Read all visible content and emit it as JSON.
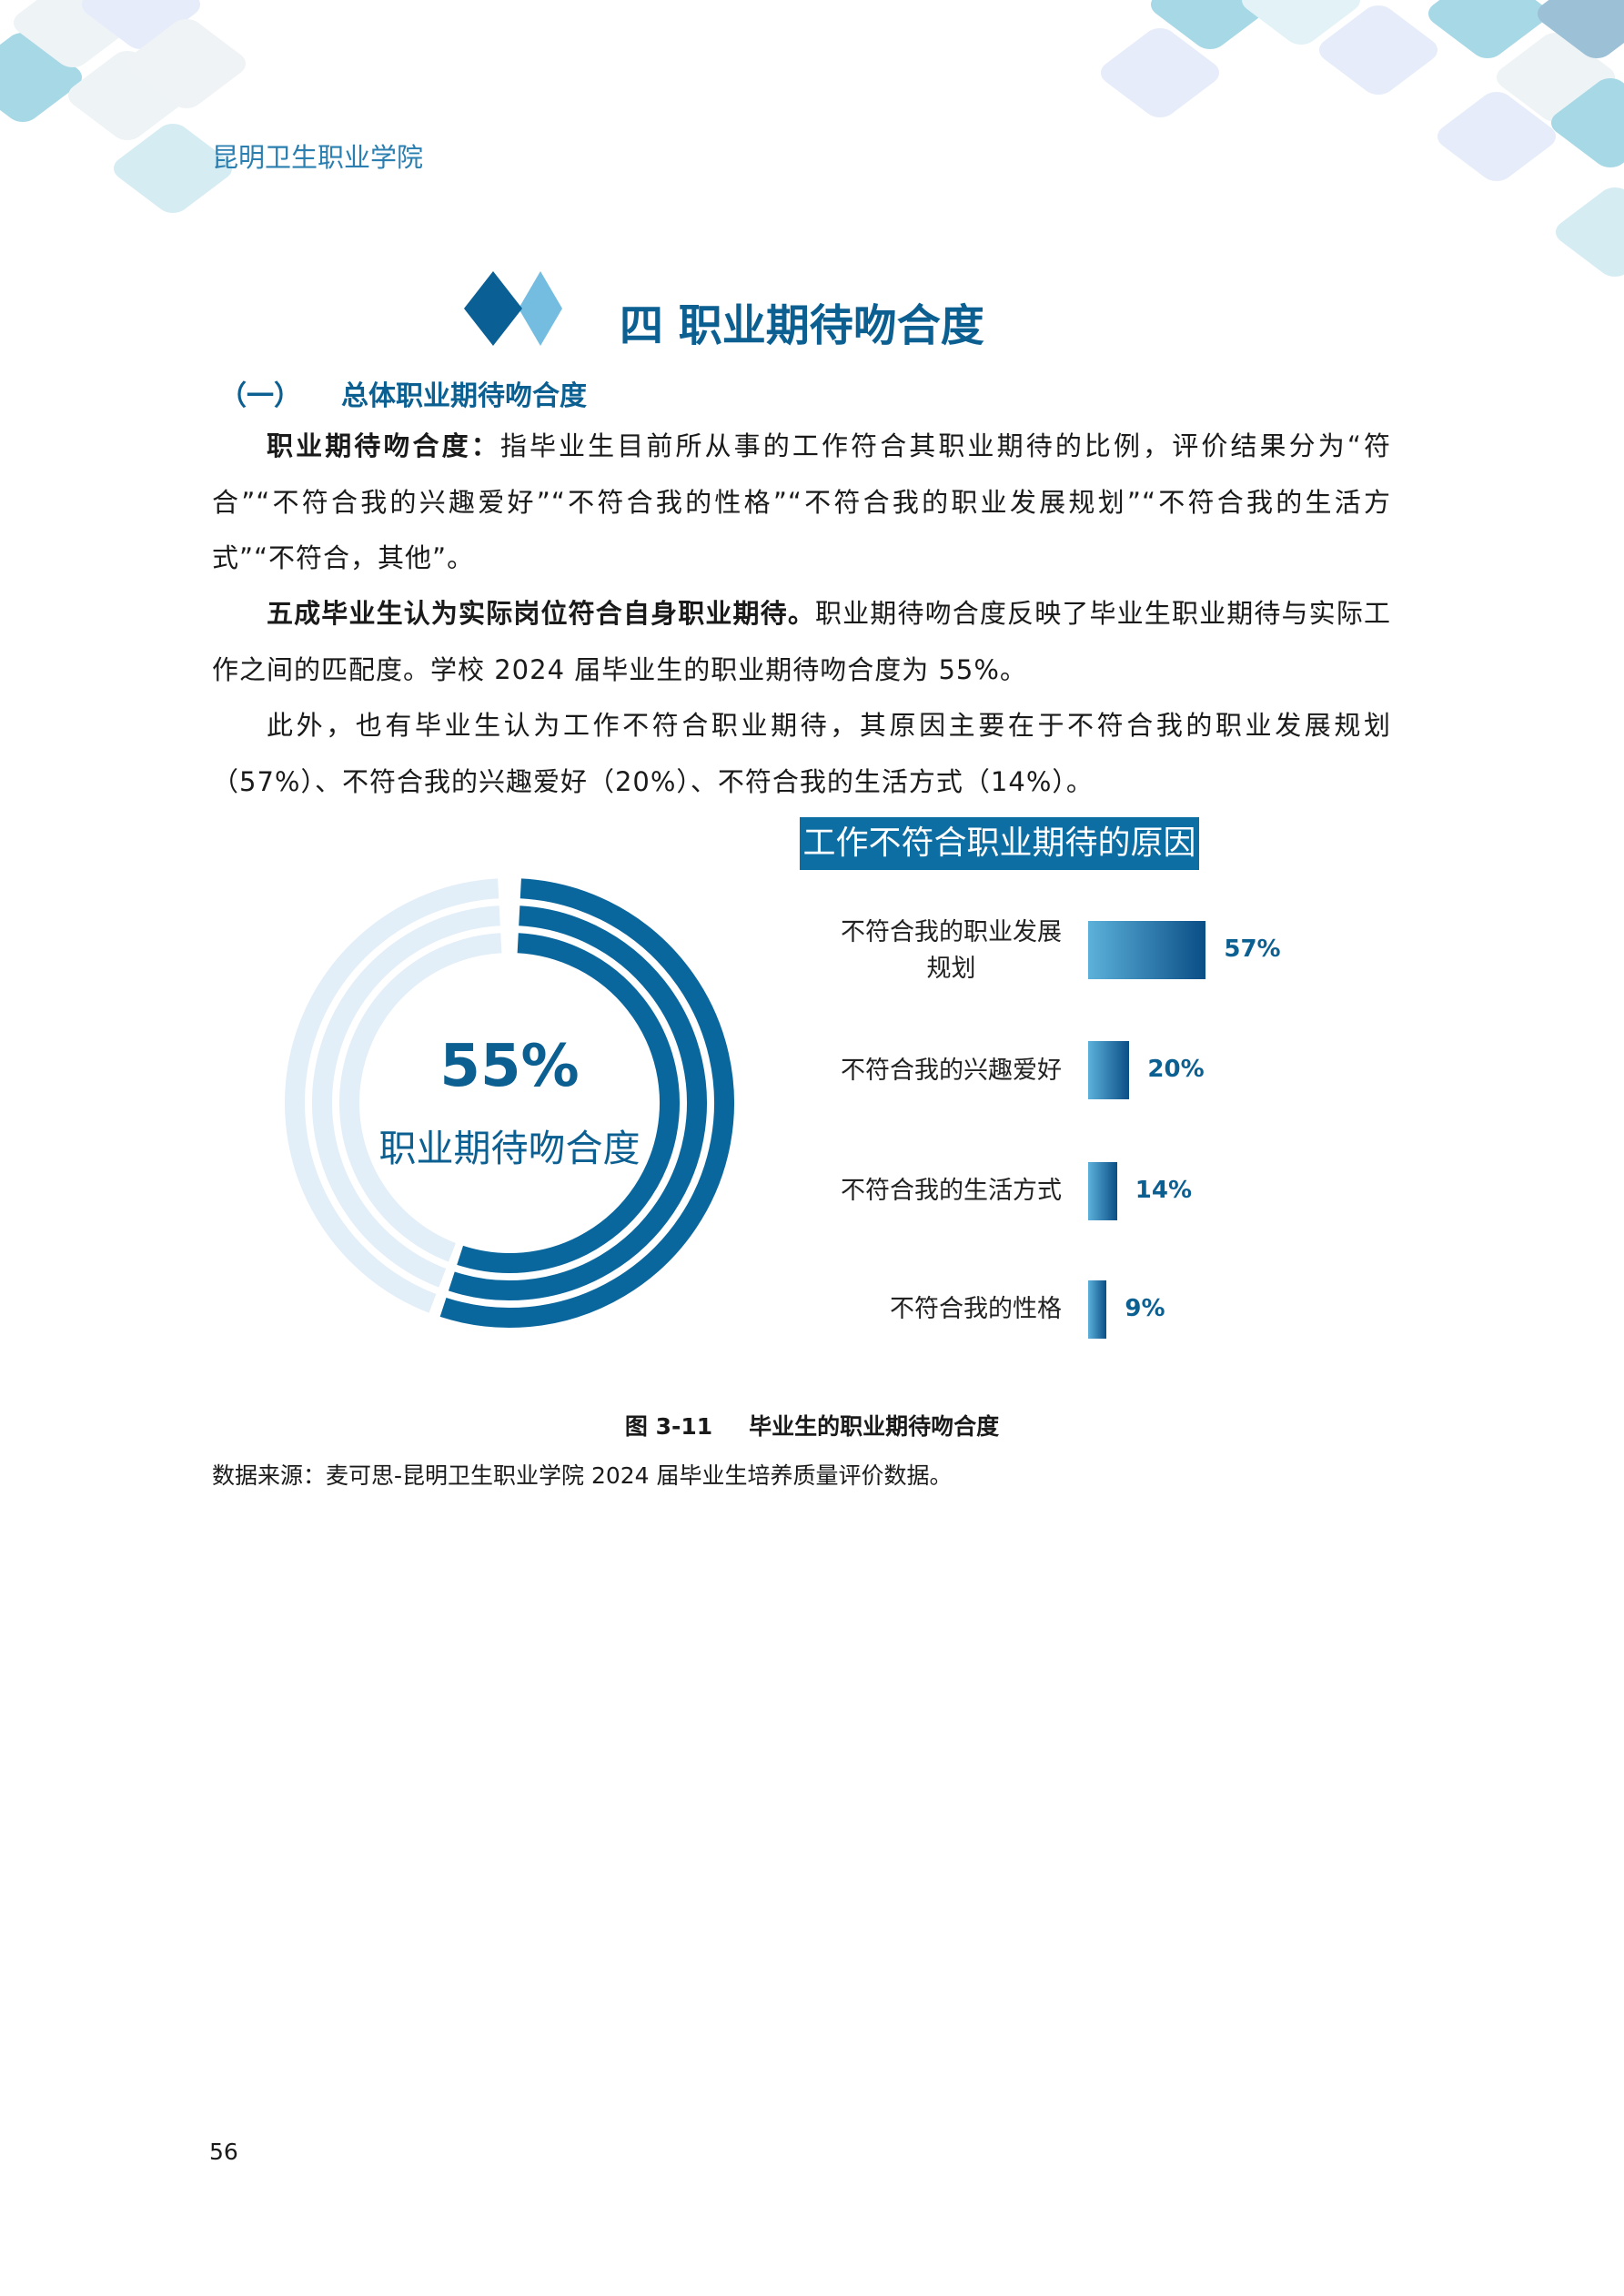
{
  "header": {
    "institution": "昆明卫生职业学院"
  },
  "section": {
    "title": "四 职业期待吻合度"
  },
  "subsection": {
    "number": "（一）",
    "title": "总体职业期待吻合度"
  },
  "paragraphs": [
    {
      "bold": "职业期待吻合度：",
      "text": "指毕业生目前所从事的工作符合其职业期待的比例，评价结果分为“符合”“不符合我的兴趣爱好”“不符合我的性格”“不符合我的职业发展规划”“不符合我的生活方式”“不符合，其他”。"
    },
    {
      "bold": "五成毕业生认为实际岗位符合自身职业期待。",
      "text": "职业期待吻合度反映了毕业生职业期待与实际工作之间的匹配度。学校 2024 届毕业生的职业期待吻合度为 55%。"
    },
    {
      "bold": "",
      "text": "此外，也有毕业生认为工作不符合职业期待，其原因主要在于不符合我的职业发展规划（57%）、不符合我的兴趣爱好（20%）、不符合我的生活方式（14%）。"
    }
  ],
  "chart_data": [
    {
      "type": "pie",
      "subtype": "concentric-ring-gauge",
      "value": 55,
      "value_label": "55%",
      "label": "职业期待吻合度",
      "colors": {
        "filled": "#0a679e",
        "track": "#e2eef8"
      }
    },
    {
      "type": "bar",
      "orientation": "horizontal",
      "title": "工作不符合职业期待的原因",
      "categories": [
        "不符合我的职业发展规划",
        "不符合我的兴趣爱好",
        "不符合我的生活方式",
        "不符合我的性格"
      ],
      "category_lines": [
        [
          "不符合我的职业发展",
          "规划"
        ],
        [
          "不符合我的兴趣爱好"
        ],
        [
          "不符合我的生活方式"
        ],
        [
          "不符合我的性格"
        ]
      ],
      "values": [
        57,
        20,
        14,
        9
      ],
      "value_labels": [
        "57%",
        "20%",
        "14%",
        "9%"
      ],
      "colors": {
        "bar_start": "#5cb1da",
        "bar_end": "#0a4e86",
        "title_bg": "#0d6ea3"
      }
    }
  ],
  "figure": {
    "number": "图 3-11",
    "caption": "毕业生的职业期待吻合度"
  },
  "source": "数据来源：麦可思-昆明卫生职业学院 2024 届毕业生培养质量评价数据。",
  "page_number": "56"
}
